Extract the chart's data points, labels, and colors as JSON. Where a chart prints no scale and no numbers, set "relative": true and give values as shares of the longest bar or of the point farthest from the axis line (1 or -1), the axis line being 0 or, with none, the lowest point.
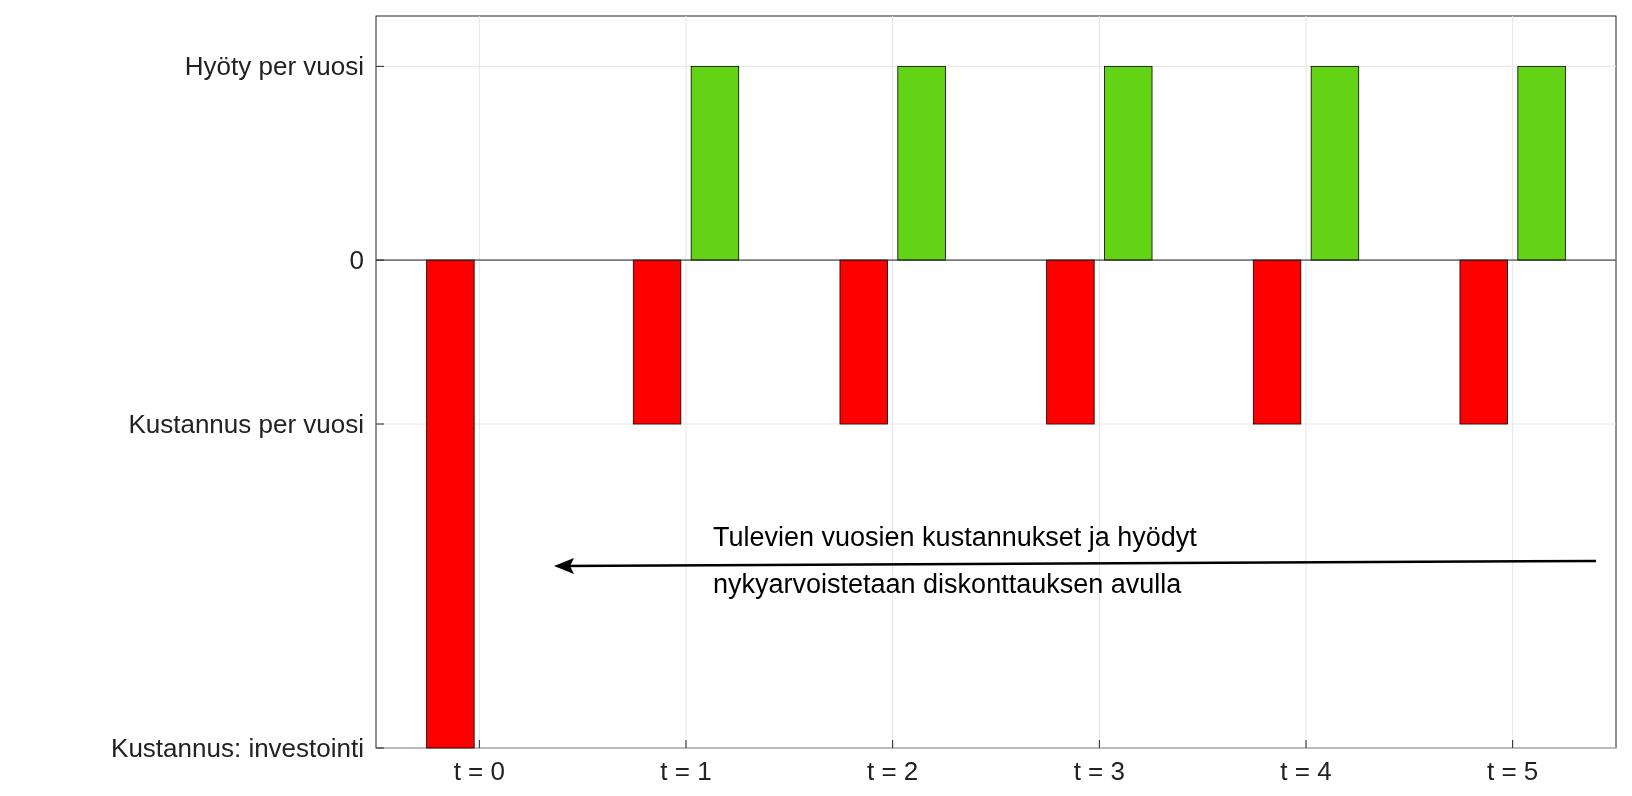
{
  "chart_data": {
    "type": "bar",
    "relative": true,
    "categories": [
      "t = 0",
      "t = 1",
      "t = 2",
      "t = 3",
      "t = 4",
      "t = 5"
    ],
    "series": [
      {
        "color": "#ff0000",
        "values": [
          -1,
          -0.336,
          -0.336,
          -0.336,
          -0.336,
          -0.336
        ]
      },
      {
        "color": "#63d316",
        "values": [
          0,
          0.397,
          0.397,
          0.397,
          0.397,
          0.397
        ]
      }
    ],
    "ref_lines": [
      {
        "axis": "y",
        "value": -1,
        "label": "Kustannus: investointi"
      },
      {
        "axis": "y",
        "value": -0.336,
        "label": "Kustannus per vuosi"
      },
      {
        "axis": "y",
        "value": 0,
        "label": "0"
      },
      {
        "axis": "y",
        "value": 0.397,
        "label": "Hyöty per vuosi"
      }
    ],
    "grid": true,
    "annotations": [
      "Tulevien vuosien kustannukset ja hyödyt\nnykyarvoistetaan diskonttauksen avulla"
    ]
  }
}
